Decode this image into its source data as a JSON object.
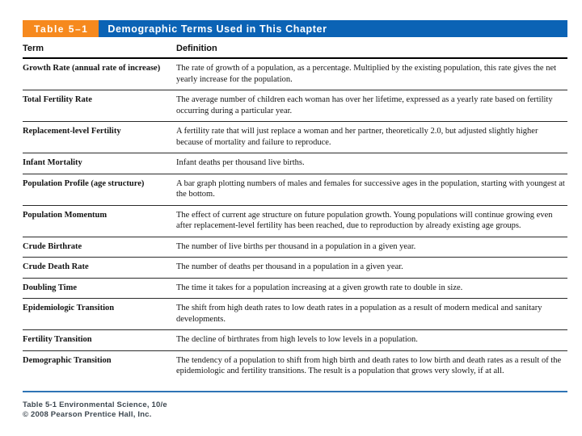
{
  "header": {
    "table_label": "Table 5–1",
    "title": "Demographic Terms Used in This Chapter",
    "label_bg_color": "#F6891E",
    "title_bg_color": "#0B63B5"
  },
  "columns": {
    "term": "Term",
    "definition": "Definition"
  },
  "rows": [
    {
      "term": "Growth Rate (annual rate of increase)",
      "definition": "The rate of growth of a population, as a percentage. Multiplied by the existing population, this rate gives the net yearly increase for the population."
    },
    {
      "term": "Total Fertility Rate",
      "definition": "The average number of children each woman has over her lifetime, expressed as a yearly rate based on fertility occurring during a particular year."
    },
    {
      "term": "Replacement-level Fertility",
      "definition": "A fertility rate that will just replace a woman and her partner, theoretically 2.0, but adjusted slightly higher because of mortality and failure to reproduce."
    },
    {
      "term": "Infant Mortality",
      "definition": "Infant deaths per thousand live births."
    },
    {
      "term": "Population Profile (age structure)",
      "definition": "A bar graph plotting numbers of males and females for successive ages in the population, starting with youngest at the bottom."
    },
    {
      "term": "Population Momentum",
      "definition": "The effect of current age structure on future population growth. Young populations will continue growing even after replacement-level fertility has been reached, due to reproduction by already existing age groups."
    },
    {
      "term": "Crude Birthrate",
      "definition": "The number of live births per thousand in a population in a given year."
    },
    {
      "term": "Crude Death Rate",
      "definition": "The number of deaths per thousand in a population in a given year."
    },
    {
      "term": "Doubling Time",
      "definition": "The time it takes for a population increasing at a given growth rate to double in size."
    },
    {
      "term": "Epidemiologic Transition",
      "definition": "The shift from high death rates to low death rates in a population as a result of modern medical and sanitary developments."
    },
    {
      "term": "Fertility Transition",
      "definition": "The decline of birthrates from high levels to low levels in a population."
    },
    {
      "term": "Demographic Transition",
      "definition": "The tendency of a population to shift from high birth and death rates to low birth and death rates as a result of the epidemiologic and fertility transitions. The result is a population that grows very slowly, if at all."
    }
  ],
  "footer": {
    "source_line1": "Table 5-1  Environmental Science, 10/e",
    "source_line2": "© 2008 Pearson Prentice Hall, Inc.",
    "divider_color": "#2E74B5"
  }
}
